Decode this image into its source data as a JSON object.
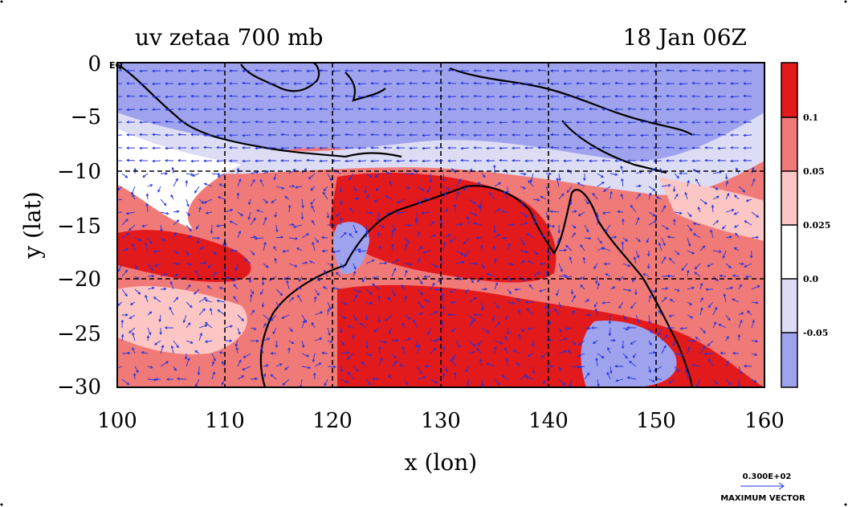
{
  "chart_data": {
    "type": "heatmap",
    "title_left": "uv zetaa 700 mb",
    "title_right": "18 Jan 06Z",
    "xlabel": "x (lon)",
    "ylabel": "y (lat)",
    "xlim": [
      100,
      160
    ],
    "ylim": [
      -30,
      0
    ],
    "x_ticks": [
      "100",
      "110",
      "120",
      "130",
      "140",
      "150",
      "160"
    ],
    "y_ticks": [
      "0",
      "−5",
      "−10",
      "−15",
      "−20",
      "−25",
      "−30"
    ],
    "eq_label": "EQ",
    "grid": true,
    "colorbar": {
      "levels": [
        "0.1",
        "0.05",
        "0.025",
        "0.0",
        "-0.05"
      ],
      "colors": [
        "#e31a1c",
        "#f07a78",
        "#fbc6c4",
        "#ffffff",
        "#dcdcf5",
        "#9fa3ee"
      ]
    },
    "vector_key": {
      "value": "0.300E+02",
      "label": "MAXIMUM VECTOR"
    }
  },
  "colors": {
    "land_outline": "#000000",
    "vectors": "#2233dd",
    "contour": "#e8001a"
  }
}
